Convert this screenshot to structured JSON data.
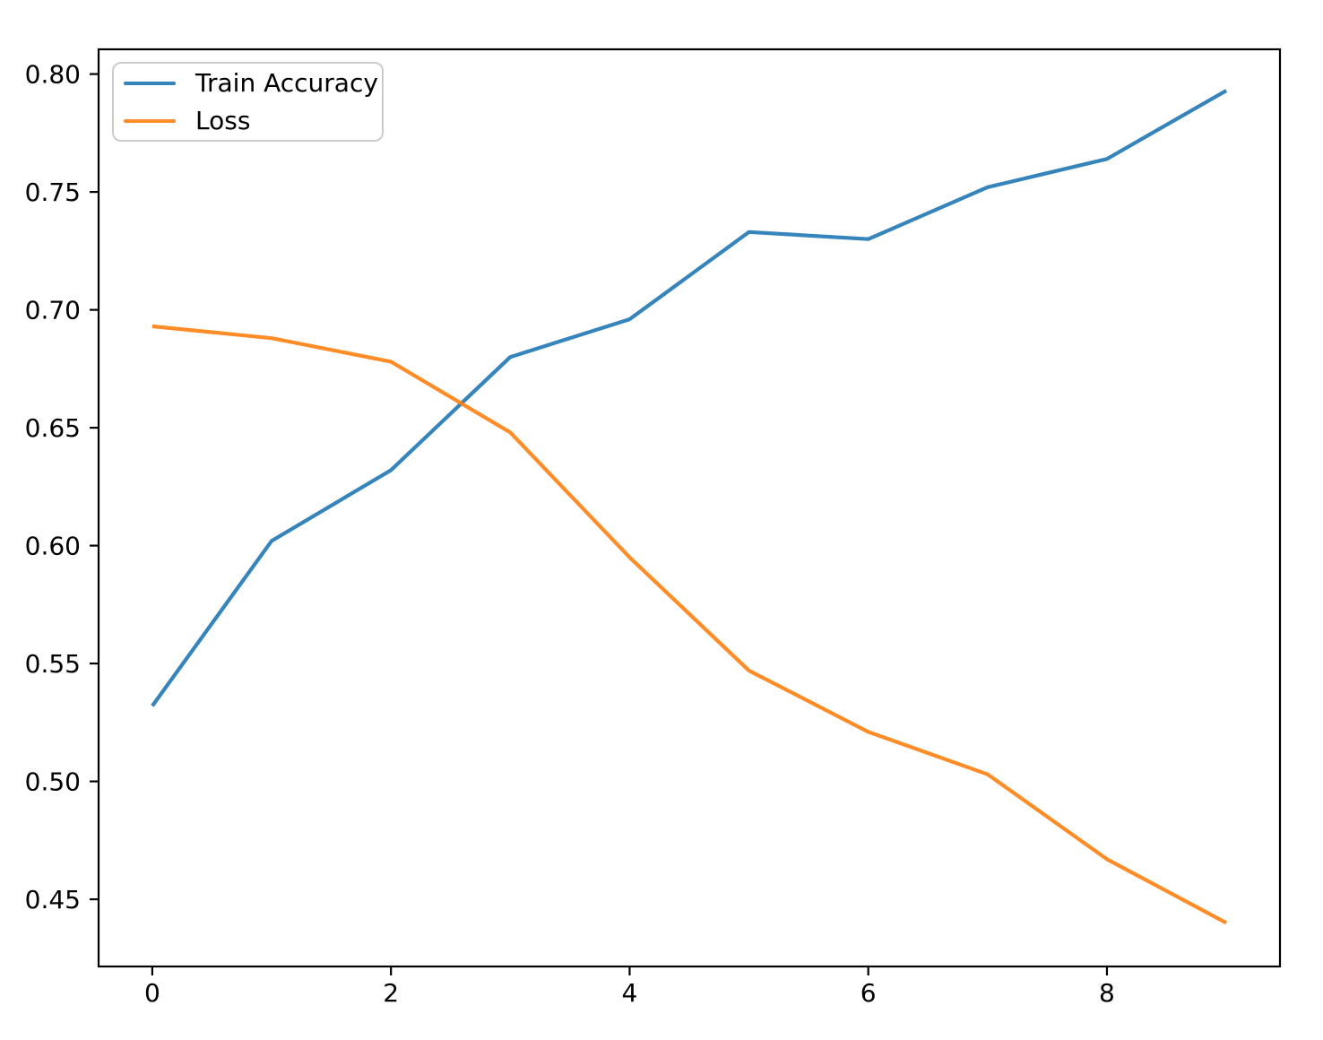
{
  "chart_data": {
    "type": "line",
    "title": "",
    "xlabel": "",
    "ylabel": "",
    "grid": false,
    "background": "#ffffff",
    "x": [
      0,
      1,
      2,
      3,
      4,
      5,
      6,
      7,
      8,
      9
    ],
    "series": [
      {
        "name": "Train Accuracy",
        "color": "#1f77b4",
        "opacity": 0.9,
        "values": [
          0.532,
          0.602,
          0.632,
          0.68,
          0.696,
          0.733,
          0.73,
          0.752,
          0.764,
          0.793
        ]
      },
      {
        "name": "Loss",
        "color": "#ff7f0e",
        "opacity": 0.9,
        "values": [
          0.693,
          0.688,
          0.678,
          0.648,
          0.595,
          0.547,
          0.521,
          0.503,
          0.467,
          0.44
        ]
      }
    ],
    "xticks": [
      0,
      2,
      4,
      6,
      8
    ],
    "xtick_labels": [
      "0",
      "2",
      "4",
      "6",
      "8"
    ],
    "yticks": [
      0.45,
      0.5,
      0.55,
      0.6,
      0.65,
      0.7,
      0.75,
      0.8
    ],
    "ytick_labels": [
      "0.45",
      "0.50",
      "0.55",
      "0.60",
      "0.65",
      "0.70",
      "0.75",
      "0.80"
    ],
    "xlim": [
      -0.45,
      9.45
    ],
    "ylim": [
      0.4215,
      0.8105
    ],
    "legend": {
      "position": "upper-left",
      "entries": [
        "Train Accuracy",
        "Loss"
      ]
    }
  }
}
